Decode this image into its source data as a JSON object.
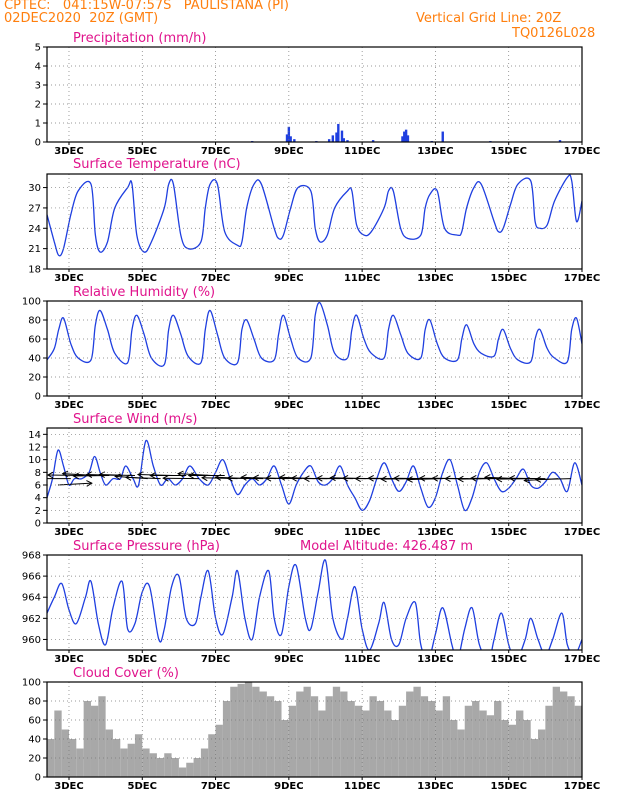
{
  "header": {
    "station": "CPTEC:   041:15W-07:57S   PAULISTANA (PI)",
    "datetime": "02DEC2020  20Z (GMT)",
    "grid_note": "Vertical Grid Line: 20Z",
    "model_code": "TQ0126L028"
  },
  "colors": {
    "header": "#ff7f0e",
    "title": "#e0138c",
    "line": "#1f3fe0",
    "cloud": "#a8a8a8",
    "wind": "#000000"
  },
  "chart_data": [
    {
      "type": "bar",
      "title": "Precipitation  (mm/h)",
      "ylim": [
        0,
        5
      ],
      "yticks": [
        0,
        1,
        2,
        3,
        4,
        5
      ],
      "xlim": [
        2.4,
        17.0
      ],
      "xticks": [
        3,
        5,
        7,
        9,
        11,
        13,
        15,
        17
      ],
      "xticklabels": [
        "3DEC",
        "5DEC",
        "7DEC",
        "9DEC",
        "11DEC",
        "13DEC",
        "15DEC",
        "17DEC"
      ],
      "grid": true,
      "points": [
        [
          8.0,
          0.05
        ],
        [
          8.95,
          0.4
        ],
        [
          9.0,
          0.8
        ],
        [
          9.05,
          0.3
        ],
        [
          9.15,
          0.15
        ],
        [
          9.75,
          0.05
        ],
        [
          10.1,
          0.15
        ],
        [
          10.2,
          0.35
        ],
        [
          10.3,
          0.5
        ],
        [
          10.35,
          0.95
        ],
        [
          10.45,
          0.6
        ],
        [
          10.5,
          0.2
        ],
        [
          10.6,
          0.1
        ],
        [
          11.3,
          0.1
        ],
        [
          12.1,
          0.3
        ],
        [
          12.15,
          0.55
        ],
        [
          12.2,
          0.65
        ],
        [
          12.25,
          0.35
        ],
        [
          12.9,
          0.05
        ],
        [
          13.2,
          0.55
        ],
        [
          14.5,
          0.05
        ],
        [
          16.4,
          0.1
        ]
      ]
    },
    {
      "type": "line",
      "title": "Surface Temperature  (nC)",
      "ylim": [
        18,
        32
      ],
      "yticks": [
        18,
        21,
        24,
        27,
        30
      ],
      "xlim": [
        2.4,
        17.0
      ],
      "xticks": [
        3,
        5,
        7,
        9,
        11,
        13,
        15,
        17
      ],
      "xticklabels": [
        "3DEC",
        "5DEC",
        "7DEC",
        "9DEC",
        "11DEC",
        "13DEC",
        "15DEC",
        "17DEC"
      ],
      "grid": true,
      "x": [
        2.4,
        2.6,
        2.72,
        2.85,
        3.05,
        3.25,
        3.6,
        3.72,
        3.85,
        4.05,
        4.25,
        4.6,
        4.72,
        4.85,
        5.05,
        5.25,
        5.6,
        5.72,
        5.85,
        6.05,
        6.25,
        6.6,
        6.72,
        6.85,
        7.05,
        7.25,
        7.6,
        7.72,
        7.85,
        8.05,
        8.25,
        8.6,
        8.72,
        8.85,
        9.05,
        9.25,
        9.6,
        9.72,
        9.85,
        10.05,
        10.25,
        10.6,
        10.72,
        10.85,
        11.05,
        11.25,
        11.6,
        11.72,
        11.85,
        12.05,
        12.25,
        12.6,
        12.72,
        12.85,
        13.05,
        13.25,
        13.6,
        13.72,
        13.85,
        14.05,
        14.25,
        14.6,
        14.72,
        14.85,
        15.05,
        15.25,
        15.6,
        15.72,
        15.85,
        16.05,
        16.25,
        16.6,
        16.72,
        16.85,
        17.0
      ],
      "y": [
        26,
        22,
        20,
        21,
        26,
        29.5,
        30.5,
        23,
        20.5,
        22,
        27,
        30,
        30.5,
        23,
        20.5,
        22,
        27,
        30.5,
        30.5,
        23,
        21,
        22,
        27,
        30.5,
        30.5,
        23.5,
        21.5,
        22,
        27,
        30.5,
        30.5,
        24,
        22.5,
        23,
        27,
        30,
        29.5,
        24,
        22,
        23,
        27,
        29.5,
        29.5,
        24.5,
        23,
        23.5,
        27,
        29.5,
        29.5,
        24,
        22.5,
        23,
        27,
        29,
        29.5,
        24,
        23,
        23.5,
        27,
        30,
        30.5,
        25,
        23.5,
        24,
        27.5,
        30.5,
        31,
        25,
        24,
        24.5,
        28,
        31.5,
        31,
        25,
        28
      ]
    },
    {
      "type": "line",
      "title": "Relative Humidity  (%)",
      "ylim": [
        0,
        100
      ],
      "yticks": [
        0,
        20,
        40,
        60,
        80,
        100
      ],
      "xlim": [
        2.4,
        17.0
      ],
      "xticks": [
        3,
        5,
        7,
        9,
        11,
        13,
        15,
        17
      ],
      "xticklabels": [
        "3DEC",
        "5DEC",
        "7DEC",
        "9DEC",
        "11DEC",
        "13DEC",
        "15DEC",
        "17DEC"
      ],
      "grid": true,
      "x": [
        2.4,
        2.6,
        2.72,
        2.85,
        3.05,
        3.25,
        3.6,
        3.72,
        3.85,
        4.05,
        4.25,
        4.6,
        4.72,
        4.85,
        5.05,
        5.25,
        5.6,
        5.72,
        5.85,
        6.05,
        6.25,
        6.6,
        6.72,
        6.85,
        7.05,
        7.25,
        7.6,
        7.72,
        7.85,
        8.05,
        8.25,
        8.6,
        8.72,
        8.85,
        9.05,
        9.25,
        9.6,
        9.72,
        9.85,
        10.05,
        10.25,
        10.6,
        10.72,
        10.85,
        11.05,
        11.25,
        11.6,
        11.72,
        11.85,
        12.05,
        12.25,
        12.6,
        12.72,
        12.85,
        13.05,
        13.25,
        13.6,
        13.72,
        13.85,
        14.05,
        14.25,
        14.6,
        14.72,
        14.85,
        15.05,
        15.25,
        15.6,
        15.72,
        15.85,
        16.05,
        16.25,
        16.6,
        16.72,
        16.85,
        17.0
      ],
      "y": [
        38,
        50,
        70,
        82,
        55,
        40,
        38,
        75,
        90,
        70,
        45,
        35,
        70,
        85,
        65,
        40,
        33,
        70,
        85,
        65,
        42,
        35,
        70,
        90,
        65,
        40,
        35,
        70,
        80,
        60,
        40,
        38,
        65,
        85,
        60,
        40,
        40,
        85,
        98,
        75,
        45,
        40,
        70,
        85,
        60,
        45,
        40,
        70,
        85,
        65,
        45,
        40,
        70,
        80,
        55,
        40,
        38,
        60,
        75,
        55,
        45,
        42,
        60,
        70,
        50,
        38,
        36,
        60,
        70,
        50,
        40,
        36,
        70,
        82,
        55
      ]
    },
    {
      "type": "line",
      "title": "Surface Wind  (m/s)",
      "ylim": [
        0,
        15
      ],
      "yticks": [
        0,
        2,
        4,
        6,
        8,
        10,
        12,
        14
      ],
      "xlim": [
        2.4,
        17.0
      ],
      "xticks": [
        3,
        5,
        7,
        9,
        11,
        13,
        15,
        17
      ],
      "xticklabels": [
        "3DEC",
        "5DEC",
        "7DEC",
        "9DEC",
        "11DEC",
        "13DEC",
        "15DEC",
        "17DEC"
      ],
      "grid": true,
      "x": [
        2.4,
        2.55,
        2.7,
        2.85,
        3.0,
        3.15,
        3.35,
        3.55,
        3.7,
        3.85,
        4.0,
        4.2,
        4.4,
        4.55,
        4.75,
        4.9,
        5.1,
        5.3,
        5.5,
        5.7,
        5.9,
        6.1,
        6.3,
        6.55,
        6.8,
        7.0,
        7.2,
        7.4,
        7.6,
        7.8,
        8.0,
        8.2,
        8.4,
        8.6,
        8.8,
        9.0,
        9.2,
        9.4,
        9.6,
        9.8,
        10.0,
        10.2,
        10.4,
        10.6,
        10.8,
        11.0,
        11.2,
        11.4,
        11.6,
        11.8,
        12.0,
        12.2,
        12.4,
        12.6,
        12.8,
        13.0,
        13.2,
        13.4,
        13.6,
        13.8,
        14.0,
        14.2,
        14.4,
        14.6,
        14.8,
        15.0,
        15.2,
        15.4,
        15.6,
        15.8,
        16.0,
        16.2,
        16.4,
        16.6,
        16.8,
        17.0
      ],
      "y": [
        4,
        7,
        11.5,
        9,
        6,
        7,
        7,
        8,
        10.5,
        8,
        6,
        7,
        7,
        9,
        7,
        6,
        13,
        9,
        6,
        7,
        6,
        7,
        9,
        7,
        6,
        8,
        10,
        7,
        4.5,
        6,
        7,
        6,
        7,
        9,
        6,
        3,
        6,
        8,
        9,
        6.5,
        6,
        7,
        9,
        6,
        4,
        2,
        3.5,
        7,
        9.5,
        7,
        5,
        6.5,
        9,
        5.5,
        2.5,
        4,
        8,
        10,
        6,
        2,
        4,
        8,
        9.5,
        7,
        5,
        5.5,
        7,
        8.5,
        6,
        5.5,
        6.5,
        8,
        7,
        5,
        9.5,
        6
      ],
      "barbs": {
        "x": [
          2.7,
          3.05,
          3.4,
          3.75,
          4.1,
          4.45,
          4.8,
          5.15,
          5.5,
          5.85,
          6.2,
          6.55,
          6.9,
          7.25,
          7.6,
          7.95,
          8.3,
          8.65,
          9.0,
          9.35,
          9.7,
          10.05,
          10.4,
          10.75,
          11.1,
          11.45,
          11.8,
          12.15,
          12.5,
          12.85,
          13.2,
          13.55,
          13.9,
          14.25,
          14.6,
          14.95,
          15.3,
          15.65,
          16.0,
          16.35,
          16.7
        ],
        "dir_deg": [
          20,
          180,
          175,
          160,
          185,
          170,
          170,
          155,
          165,
          170,
          180,
          175,
          160,
          180,
          170,
          165,
          175,
          165,
          170,
          175,
          165,
          175,
          180,
          175,
          170,
          175,
          180,
          175,
          185,
          175,
          190,
          175,
          175,
          180,
          185,
          175,
          165,
          185,
          175,
          200,
          190
        ],
        "len": [
          6.5,
          7,
          7.5,
          7,
          7,
          7,
          8,
          7,
          7,
          7,
          7,
          7,
          7,
          7.5,
          7,
          7,
          7,
          7,
          7,
          7,
          7,
          7,
          7,
          7,
          7,
          7,
          7,
          7,
          7,
          7,
          7,
          7,
          7,
          7,
          7,
          7,
          7,
          7,
          7,
          7,
          7
        ],
        "level": [
          6,
          7,
          7.5,
          7.5,
          7.5,
          7.5,
          7.5,
          7,
          7,
          7.5,
          7.5,
          7,
          7.5,
          7.5,
          7,
          7,
          7,
          7,
          7,
          7,
          7,
          7,
          7,
          7,
          7,
          7,
          7,
          7,
          7,
          7,
          7,
          7,
          7,
          7,
          7,
          7,
          7,
          7,
          7,
          7,
          7
        ]
      }
    },
    {
      "type": "line",
      "title": "Surface Pressure  (hPa)",
      "annotation": "Model Altitude: 426.487  m",
      "ylim": [
        959,
        968
      ],
      "yticks": [
        960,
        962,
        964,
        966,
        968
      ],
      "xlim": [
        2.4,
        17.0
      ],
      "xticks": [
        3,
        5,
        7,
        9,
        11,
        13,
        15,
        17
      ],
      "xticklabels": [
        "3DEC",
        "5DEC",
        "7DEC",
        "9DEC",
        "11DEC",
        "13DEC",
        "15DEC",
        "17DEC"
      ],
      "grid": true,
      "x": [
        2.4,
        2.6,
        2.8,
        3.0,
        3.2,
        3.45,
        3.6,
        3.8,
        4.0,
        4.2,
        4.45,
        4.6,
        4.8,
        5.0,
        5.2,
        5.45,
        5.6,
        5.8,
        6.0,
        6.2,
        6.45,
        6.6,
        6.8,
        7.0,
        7.2,
        7.45,
        7.6,
        7.8,
        8.0,
        8.2,
        8.45,
        8.6,
        8.8,
        9.0,
        9.2,
        9.45,
        9.6,
        9.8,
        10.0,
        10.2,
        10.45,
        10.6,
        10.8,
        11.0,
        11.2,
        11.45,
        11.6,
        11.8,
        12.0,
        12.2,
        12.45,
        12.6,
        12.8,
        13.0,
        13.2,
        13.45,
        13.6,
        13.8,
        14.0,
        14.2,
        14.45,
        14.6,
        14.8,
        15.0,
        15.2,
        15.45,
        15.6,
        15.8,
        16.0,
        16.2,
        16.45,
        16.6,
        16.8,
        17.0
      ],
      "y": [
        962.5,
        964,
        965.3,
        962.8,
        961.5,
        964,
        965.5,
        961.5,
        959.5,
        963,
        965.5,
        961,
        961.5,
        964.5,
        965,
        960,
        961,
        965,
        966,
        962,
        961.5,
        964,
        966.5,
        962,
        960.5,
        964,
        966.5,
        962,
        960,
        964,
        966.5,
        962,
        960.5,
        965,
        967,
        962,
        961,
        964.5,
        967.5,
        962,
        960,
        962,
        965,
        961,
        959,
        961.5,
        963.5,
        960,
        959.5,
        962,
        963.5,
        959.5,
        958,
        960.5,
        963,
        959.5,
        958,
        961,
        963,
        959.5,
        958,
        960,
        962.5,
        959.5,
        958,
        960,
        962,
        960,
        958.5,
        960,
        962.5,
        959.5,
        958.5,
        960
      ]
    },
    {
      "type": "bar",
      "title": "Cloud Cover  (%)",
      "ylim": [
        0,
        100
      ],
      "yticks": [
        0,
        20,
        40,
        60,
        80,
        100
      ],
      "xlim": [
        2.4,
        17.0
      ],
      "xticks": [
        3,
        5,
        7,
        9,
        11,
        13,
        15,
        17
      ],
      "xticklabels": [
        "3DEC",
        "5DEC",
        "7DEC",
        "9DEC",
        "11DEC",
        "13DEC",
        "15DEC",
        "17DEC"
      ],
      "grid": true,
      "x": [
        2.4,
        2.6,
        2.8,
        3.0,
        3.2,
        3.4,
        3.6,
        3.8,
        4.0,
        4.2,
        4.4,
        4.6,
        4.8,
        5.0,
        5.2,
        5.4,
        5.6,
        5.8,
        6.0,
        6.2,
        6.4,
        6.6,
        6.8,
        7.0,
        7.2,
        7.4,
        7.6,
        7.8,
        8.0,
        8.2,
        8.4,
        8.6,
        8.8,
        9.0,
        9.2,
        9.4,
        9.6,
        9.8,
        10.0,
        10.2,
        10.4,
        10.6,
        10.8,
        11.0,
        11.2,
        11.4,
        11.6,
        11.8,
        12.0,
        12.2,
        12.4,
        12.6,
        12.8,
        13.0,
        13.2,
        13.4,
        13.6,
        13.8,
        14.0,
        14.2,
        14.4,
        14.6,
        14.8,
        15.0,
        15.2,
        15.4,
        15.6,
        15.8,
        16.0,
        16.2,
        16.4,
        16.6,
        16.8,
        17.0
      ],
      "y": [
        40,
        70,
        50,
        40,
        30,
        80,
        75,
        85,
        50,
        40,
        30,
        35,
        45,
        30,
        25,
        20,
        25,
        20,
        10,
        15,
        20,
        30,
        45,
        55,
        80,
        95,
        98,
        100,
        95,
        90,
        85,
        80,
        60,
        75,
        90,
        95,
        85,
        70,
        85,
        95,
        90,
        80,
        75,
        70,
        85,
        80,
        70,
        60,
        75,
        90,
        95,
        85,
        80,
        70,
        85,
        60,
        50,
        75,
        80,
        70,
        65,
        80,
        60,
        55,
        70,
        60,
        40,
        50,
        75,
        95,
        90,
        85,
        75,
        70
      ]
    }
  ]
}
